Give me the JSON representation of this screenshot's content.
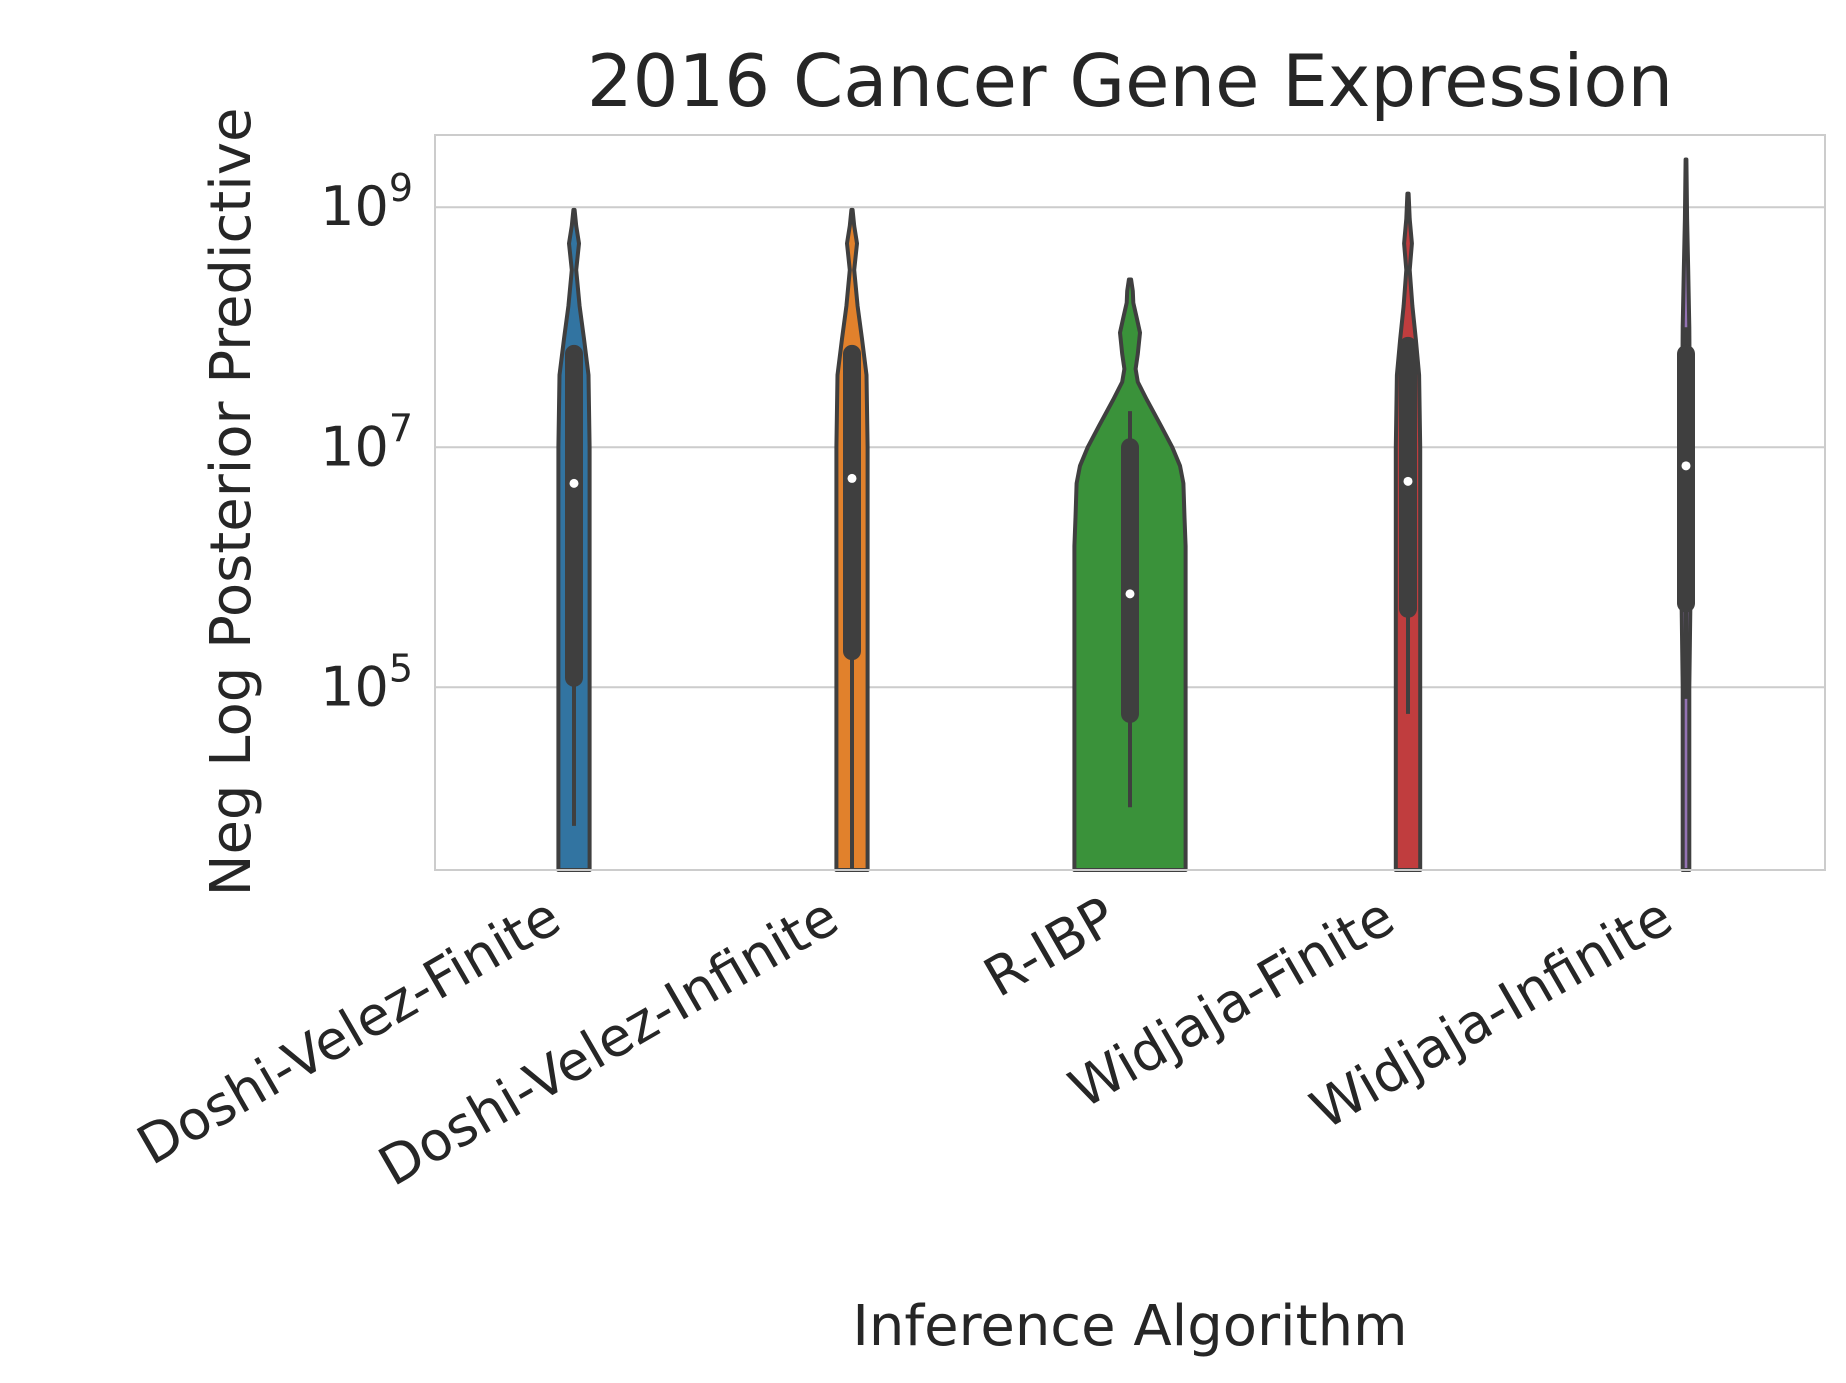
{
  "chart_data": {
    "type": "violin",
    "title": "2016 Cancer Gene Expression",
    "xlabel": "Inference Algorithm",
    "ylabel": "Neg Log Posterior Predictive",
    "y_scale": "log",
    "ylim": [
      3000,
      4000000000
    ],
    "y_ticks": [
      {
        "value": 100000,
        "base": "10",
        "exp": "5"
      },
      {
        "value": 10000000,
        "base": "10",
        "exp": "7"
      },
      {
        "value": 1000000000,
        "base": "10",
        "exp": "9"
      }
    ],
    "grid": "horizontal",
    "categories": [
      "Doshi-Velez-Finite",
      "Doshi-Velez-Infinite",
      "R-IBP",
      "Widjaja-Finite",
      "Widjaja-Infinite"
    ],
    "colors": [
      "#3274a1",
      "#e1812c",
      "#3a923a",
      "#c03d3e",
      "#9372b2"
    ],
    "series": [
      {
        "category": "Doshi-Velez-Finite",
        "median": 5000000,
        "q1": 120000,
        "q3": 60000000,
        "whisker_low": 7000,
        "whisker_high": 70000000,
        "profile": [
          [
            3000,
            0.14
          ],
          [
            100000,
            0.14
          ],
          [
            1000000,
            0.14
          ],
          [
            10000000,
            0.14
          ],
          [
            40000000,
            0.13
          ],
          [
            80000000,
            0.09
          ],
          [
            150000000,
            0.05
          ],
          [
            300000000,
            0.02
          ],
          [
            500000000,
            0.045
          ],
          [
            700000000,
            0.02
          ],
          [
            950000000,
            0.005
          ]
        ]
      },
      {
        "category": "Doshi-Velez-Infinite",
        "median": 5500000,
        "q1": 200000,
        "q3": 60000000,
        "whisker_low": 3000,
        "whisker_high": 70000000,
        "profile": [
          [
            3000,
            0.14
          ],
          [
            100000,
            0.14
          ],
          [
            1000000,
            0.14
          ],
          [
            10000000,
            0.14
          ],
          [
            40000000,
            0.13
          ],
          [
            80000000,
            0.09
          ],
          [
            150000000,
            0.05
          ],
          [
            300000000,
            0.02
          ],
          [
            500000000,
            0.045
          ],
          [
            700000000,
            0.02
          ],
          [
            950000000,
            0.005
          ]
        ]
      },
      {
        "category": "R-IBP",
        "median": 600000,
        "q1": 60000,
        "q3": 10000000,
        "whisker_low": 10000,
        "whisker_high": 20000000,
        "profile": [
          [
            3000,
            0.5
          ],
          [
            1500000,
            0.5
          ],
          [
            2600000,
            0.49
          ],
          [
            5000000,
            0.48
          ],
          [
            7000000,
            0.45
          ],
          [
            10000000,
            0.38
          ],
          [
            15000000,
            0.28
          ],
          [
            25000000,
            0.15
          ],
          [
            35000000,
            0.07
          ],
          [
            45000000,
            0.05
          ],
          [
            60000000,
            0.07
          ],
          [
            90000000,
            0.09
          ],
          [
            120000000,
            0.06
          ],
          [
            160000000,
            0.03
          ],
          [
            200000000,
            0.025
          ],
          [
            250000000,
            0.01
          ]
        ]
      },
      {
        "category": "Widjaja-Finite",
        "median": 5200000,
        "q1": 450000,
        "q3": 70000000,
        "whisker_low": 60000,
        "whisker_high": 75000000,
        "profile": [
          [
            3000,
            0.11
          ],
          [
            100000,
            0.11
          ],
          [
            1000000,
            0.11
          ],
          [
            10000000,
            0.11
          ],
          [
            40000000,
            0.1
          ],
          [
            80000000,
            0.07
          ],
          [
            150000000,
            0.04
          ],
          [
            300000000,
            0.015
          ],
          [
            500000000,
            0.035
          ],
          [
            800000000,
            0.015
          ],
          [
            1300000000,
            0.005
          ]
        ]
      },
      {
        "category": "Widjaja-Infinite",
        "median": 7000000,
        "q1": 500000,
        "q3": 60000000,
        "whisker_low": 80000,
        "whisker_high": 100000000,
        "profile": [
          [
            3000,
            0.03
          ],
          [
            100000,
            0.03
          ],
          [
            500000,
            0.04
          ],
          [
            5000000,
            0.035
          ],
          [
            20000000,
            0.035
          ],
          [
            100000000,
            0.03
          ],
          [
            300000000,
            0.02
          ],
          [
            800000000,
            0.01
          ],
          [
            2500000000,
            0.004
          ]
        ]
      }
    ]
  }
}
